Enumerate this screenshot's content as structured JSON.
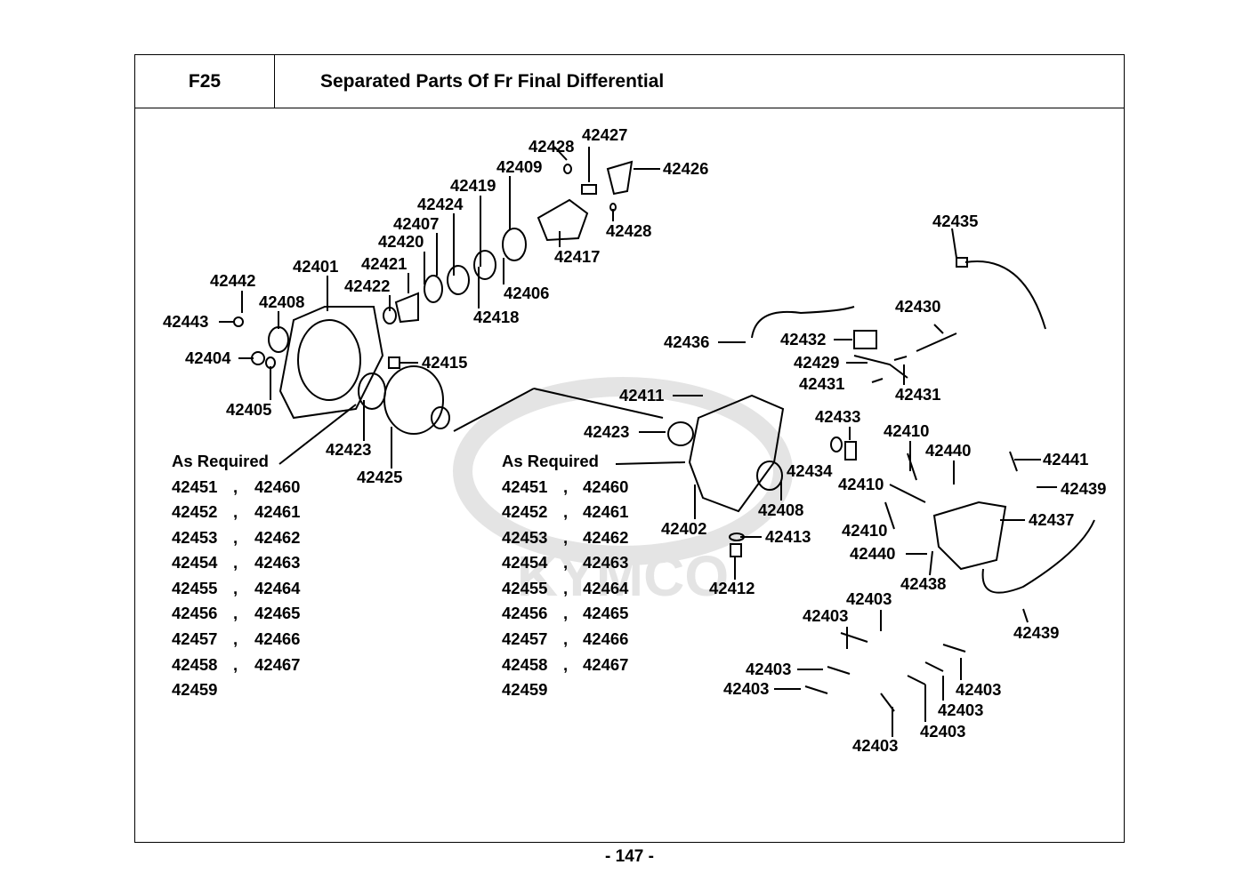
{
  "header": {
    "code": "F25",
    "title": "Separated Parts Of Fr Final Differential"
  },
  "watermark": "KYMCO",
  "callouts": [
    "42428",
    "42427",
    "42409",
    "42426",
    "42419",
    "42424",
    "42407",
    "42420",
    "42428",
    "42417",
    "42435",
    "42401",
    "42421",
    "42442",
    "42422",
    "42406",
    "42408",
    "42418",
    "42430",
    "42443",
    "42436",
    "42432",
    "42404",
    "42415",
    "42429",
    "42431",
    "42411",
    "42431",
    "42405",
    "42433",
    "42423",
    "42410",
    "42423",
    "42440",
    "42441",
    "42434",
    "42425",
    "42410",
    "42439",
    "42408",
    "42437",
    "42402",
    "42410",
    "42413",
    "42440",
    "42438",
    "42412",
    "42403",
    "42403",
    "42439",
    "42403",
    "42403",
    "42403",
    "42403",
    "42403",
    "42403"
  ],
  "as_required_left": {
    "label": "As Required",
    "separator": ",",
    "rows": [
      [
        "42451",
        "42460"
      ],
      [
        "42452",
        "42461"
      ],
      [
        "42453",
        "42462"
      ],
      [
        "42454",
        "42463"
      ],
      [
        "42455",
        "42464"
      ],
      [
        "42456",
        "42465"
      ],
      [
        "42457",
        "42466"
      ],
      [
        "42458",
        "42467"
      ],
      [
        "42459"
      ]
    ]
  },
  "as_required_right": {
    "label": "As Required",
    "separator": ",",
    "rows": [
      [
        "42451",
        "42460"
      ],
      [
        "42452",
        "42461"
      ],
      [
        "42453",
        "42462"
      ],
      [
        "42454",
        "42463"
      ],
      [
        "42455",
        "42464"
      ],
      [
        "42456",
        "42465"
      ],
      [
        "42457",
        "42466"
      ],
      [
        "42458",
        "42467"
      ],
      [
        "42459"
      ]
    ]
  },
  "page_number": "- 147 -"
}
